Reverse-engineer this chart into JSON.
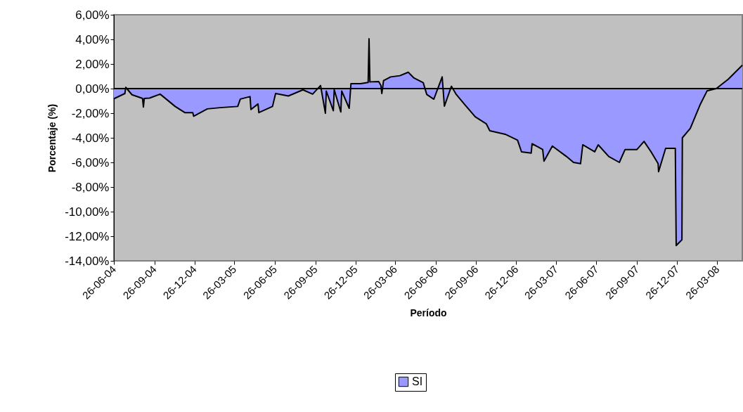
{
  "chart_data": {
    "type": "area",
    "xlabel": "Período",
    "ylabel": "Porcentaje (%)",
    "x": [
      "2004-06-26",
      "2004-07-21",
      "2004-07-23",
      "2004-08-06",
      "2004-08-30",
      "2004-09-01",
      "2004-09-03",
      "2004-09-15",
      "2004-10-09",
      "2004-11-12",
      "2004-12-04",
      "2004-12-22",
      "2004-12-24",
      "2005-01-24",
      "2005-02-22",
      "2005-04-03",
      "2005-04-09",
      "2005-05-01",
      "2005-05-03",
      "2005-05-19",
      "2005-05-21",
      "2005-06-21",
      "2005-06-28",
      "2005-07-27",
      "2005-08-29",
      "2005-09-20",
      "2005-10-08",
      "2005-10-19",
      "2005-10-21",
      "2005-11-06",
      "2005-11-08",
      "2005-11-23",
      "2005-11-25",
      "2005-12-12",
      "2005-12-16",
      "2006-01-07",
      "2006-01-24",
      "2006-01-26",
      "2006-01-28",
      "2006-01-30",
      "2006-02-17",
      "2006-02-22",
      "2006-02-24",
      "2006-02-28",
      "2006-03-16",
      "2006-04-06",
      "2006-04-25",
      "2006-05-08",
      "2006-05-29",
      "2006-06-06",
      "2006-06-22",
      "2006-07-11",
      "2006-07-16",
      "2006-08-01",
      "2006-08-12",
      "2006-09-01",
      "2006-09-24",
      "2006-10-19",
      "2006-10-27",
      "2006-12-01",
      "2006-12-29",
      "2007-01-07",
      "2007-01-29",
      "2007-01-31",
      "2007-02-24",
      "2007-02-27",
      "2007-03-18",
      "2007-04-19",
      "2007-05-05",
      "2007-05-21",
      "2007-05-26",
      "2007-06-22",
      "2007-06-30",
      "2007-07-24",
      "2007-08-17",
      "2007-08-30",
      "2007-09-26",
      "2007-10-12",
      "2007-10-28",
      "2007-11-13",
      "2007-11-14",
      "2007-11-30",
      "2007-12-22",
      "2007-12-24",
      "2008-01-06",
      "2008-01-07",
      "2008-01-25",
      "2008-02-16",
      "2008-03-03",
      "2008-03-24",
      "2008-04-20",
      "2008-05-06",
      "2008-05-22"
    ],
    "series": [
      {
        "name": "SI",
        "color": "#9999ff",
        "values": [
          -0.83,
          -0.4,
          0.1,
          -0.5,
          -0.8,
          -1.5,
          -0.8,
          -0.77,
          -0.45,
          -1.45,
          -1.95,
          -1.95,
          -2.25,
          -1.65,
          -1.55,
          -1.45,
          -0.85,
          -0.65,
          -1.7,
          -1.25,
          -1.95,
          -1.45,
          -0.4,
          -0.6,
          -0.1,
          -0.45,
          0.25,
          -2.0,
          -0.2,
          -1.8,
          -0.1,
          -1.9,
          -0.2,
          -1.6,
          0.4,
          0.4,
          0.5,
          4.05,
          0.55,
          0.55,
          0.57,
          0.25,
          -0.4,
          0.65,
          0.95,
          1.05,
          1.33,
          0.86,
          0.48,
          -0.48,
          -0.86,
          0.95,
          -1.43,
          0.19,
          -0.48,
          -1.33,
          -2.29,
          -2.86,
          -3.43,
          -3.71,
          -4.19,
          -5.14,
          -5.24,
          -4.48,
          -4.95,
          -5.9,
          -4.67,
          -5.52,
          -6.0,
          -6.1,
          -4.57,
          -5.14,
          -4.57,
          -5.52,
          -6.0,
          -4.95,
          -4.95,
          -4.29,
          -5.14,
          -6.1,
          -6.76,
          -4.86,
          -4.86,
          -12.76,
          -12.29,
          -4.0,
          -3.24,
          -1.33,
          -0.19,
          0.0,
          0.76,
          1.33,
          1.9
        ]
      }
    ],
    "xlim": [
      "2004-06-26",
      "2008-05-22"
    ],
    "xticks": [
      {
        "value": "2004-06-26",
        "label": "26-06-04"
      },
      {
        "value": "2004-09-26",
        "label": "26-09-04"
      },
      {
        "value": "2004-12-26",
        "label": "26-12-04"
      },
      {
        "value": "2005-03-26",
        "label": "26-03-05"
      },
      {
        "value": "2005-06-26",
        "label": "26-06-05"
      },
      {
        "value": "2005-09-26",
        "label": "26-09-05"
      },
      {
        "value": "2005-12-26",
        "label": "26-12-05"
      },
      {
        "value": "2006-03-26",
        "label": "26-03-06"
      },
      {
        "value": "2006-06-26",
        "label": "26-06-06"
      },
      {
        "value": "2006-09-26",
        "label": "26-09-06"
      },
      {
        "value": "2006-12-26",
        "label": "26-12-06"
      },
      {
        "value": "2007-03-26",
        "label": "26-03-07"
      },
      {
        "value": "2007-06-26",
        "label": "26-06-07"
      },
      {
        "value": "2007-09-26",
        "label": "26-09-07"
      },
      {
        "value": "2007-12-26",
        "label": "26-12-07"
      },
      {
        "value": "2008-03-26",
        "label": "26-03-08"
      }
    ],
    "ylim": [
      -14,
      6
    ],
    "yticks": [
      {
        "value": 6,
        "label": "6,00%"
      },
      {
        "value": 4,
        "label": "4,00%"
      },
      {
        "value": 2,
        "label": "2,00%"
      },
      {
        "value": 0,
        "label": "0,00%"
      },
      {
        "value": -2,
        "label": "-2,00%"
      },
      {
        "value": -4,
        "label": "-4,00%"
      },
      {
        "value": -6,
        "label": "-6,00%"
      },
      {
        "value": -8,
        "label": "-8,00%"
      },
      {
        "value": -10,
        "label": "-10,00%"
      },
      {
        "value": -12,
        "label": "-12,00%"
      },
      {
        "value": -14,
        "label": "-14,00%"
      }
    ],
    "ref_lines": [
      {
        "axis": "y",
        "value": 0,
        "color": "#000000"
      }
    ],
    "grid": false,
    "legend": "bottom"
  }
}
